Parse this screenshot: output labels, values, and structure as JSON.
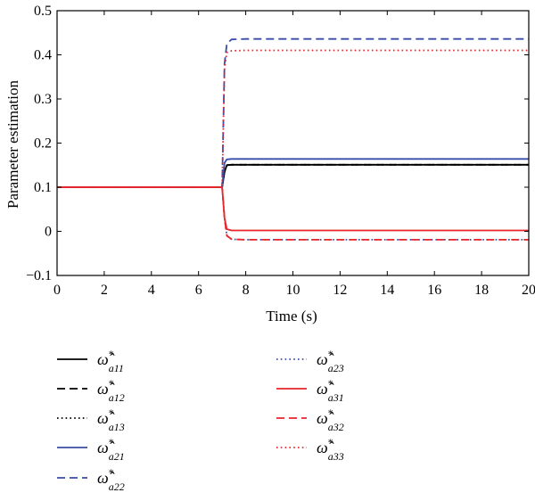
{
  "chart_data": {
    "type": "line",
    "title": "",
    "xlabel": "Time (s)",
    "ylabel": "Parameter estimation",
    "xlim": [
      0,
      20
    ],
    "ylim": [
      -0.1,
      0.5
    ],
    "xticks": [
      0,
      2,
      4,
      6,
      8,
      10,
      12,
      14,
      16,
      18,
      20
    ],
    "yticks": [
      -0.1,
      0,
      0.1,
      0.2,
      0.3,
      0.4,
      0.5
    ],
    "xtick_labels": [
      "0",
      "2",
      "4",
      "6",
      "8",
      "10",
      "12",
      "14",
      "16",
      "18",
      "20"
    ],
    "ytick_labels": [
      "−0.1",
      "0",
      "0.1",
      "0.2",
      "0.3",
      "0.4",
      "0.5"
    ],
    "grid": false,
    "legend_placement": "below",
    "series": [
      {
        "name": "ω̂*a11",
        "symbol": "ω̂",
        "sup": "*",
        "sub": "a11",
        "color": "#000000",
        "style": "solid",
        "x": [
          0,
          7,
          7.1,
          7.2,
          7.4,
          8,
          20
        ],
        "y": [
          0.1,
          0.1,
          0.135,
          0.15,
          0.151,
          0.151,
          0.151
        ]
      },
      {
        "name": "ω̂*a12",
        "symbol": "ω̂",
        "sup": "*",
        "sub": "a12",
        "color": "#000000",
        "style": "dashed",
        "x": [
          0,
          7,
          7.1,
          7.2,
          7.4,
          8,
          20
        ],
        "y": [
          0.1,
          0.1,
          0.135,
          0.15,
          0.151,
          0.151,
          0.151
        ]
      },
      {
        "name": "ω̂*a13",
        "symbol": "ω̂",
        "sup": "*",
        "sub": "a13",
        "color": "#000000",
        "style": "dotted",
        "x": [
          0,
          7,
          7.1,
          7.2,
          7.4,
          8,
          20
        ],
        "y": [
          0.1,
          0.1,
          0.135,
          0.15,
          0.151,
          0.151,
          0.151
        ]
      },
      {
        "name": "ω̂*a21",
        "symbol": "ω̂",
        "sup": "*",
        "sub": "a21",
        "color": "#3b4ba8",
        "style": "solid",
        "x": [
          0,
          7,
          7.1,
          7.2,
          7.4,
          8,
          20
        ],
        "y": [
          0.1,
          0.1,
          0.155,
          0.163,
          0.164,
          0.164,
          0.164
        ]
      },
      {
        "name": "ω̂*a22",
        "symbol": "ω̂",
        "sup": "*",
        "sub": "a22",
        "color": "#3b4ba8",
        "style": "dashed",
        "x": [
          0,
          7,
          7.1,
          7.2,
          7.4,
          8,
          20
        ],
        "y": [
          0.1,
          0.1,
          0.38,
          0.425,
          0.435,
          0.436,
          0.436
        ]
      },
      {
        "name": "ω̂*a23",
        "symbol": "ω̂",
        "sup": "*",
        "sub": "a23",
        "color": "#3b4ba8",
        "style": "dotted",
        "x": [
          0,
          7,
          7.1,
          7.2,
          7.4,
          8,
          20
        ],
        "y": [
          0.1,
          0.1,
          0.03,
          -0.01,
          -0.018,
          -0.019,
          -0.019
        ]
      },
      {
        "name": "ω̂*a31",
        "symbol": "ω̂",
        "sup": "*",
        "sub": "a31",
        "color": "#e8262b",
        "style": "solid",
        "x": [
          0,
          7,
          7.1,
          7.2,
          7.4,
          8,
          20
        ],
        "y": [
          0.1,
          0.1,
          0.03,
          0.005,
          0.002,
          0.002,
          0.002
        ]
      },
      {
        "name": "ω̂*a32",
        "symbol": "ω̂",
        "sup": "*",
        "sub": "a32",
        "color": "#e8262b",
        "style": "dashed",
        "x": [
          0,
          7,
          7.1,
          7.2,
          7.4,
          8,
          20
        ],
        "y": [
          0.1,
          0.1,
          0.03,
          -0.01,
          -0.018,
          -0.019,
          -0.019
        ]
      },
      {
        "name": "ω̂*a33",
        "symbol": "ω̂",
        "sup": "*",
        "sub": "a33",
        "color": "#e8262b",
        "style": "dotted",
        "x": [
          0,
          7,
          7.1,
          7.2,
          7.4,
          8,
          20
        ],
        "y": [
          0.1,
          0.1,
          0.37,
          0.405,
          0.409,
          0.41,
          0.41
        ]
      }
    ]
  }
}
